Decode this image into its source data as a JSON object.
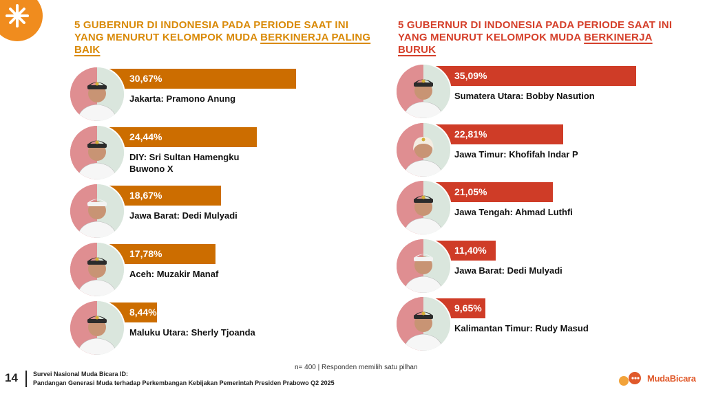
{
  "colors": {
    "best_accent": "#d98a08",
    "best_bar": "#cc6d00",
    "worst_accent": "#d5402b",
    "worst_bar": "#cf3c27",
    "logo": "#f08c1e"
  },
  "titles": {
    "best_part1": "5 GUBERNUR DI INDONESIA PADA PERIODE SAAT INI YANG MENURUT KELOMPOK MUDA ",
    "best_emph": "BERKINERJA PALING BAIK",
    "worst_part1": "5 GUBERNUR DI INDONESIA PADA PERIODE SAAT INI YANG MENURUT KELOMPOK MUDA ",
    "worst_emph": "BERKINERJA BURUK"
  },
  "chart_data": [
    {
      "type": "bar",
      "orientation": "horizontal",
      "title": "5 GUBERNUR DI INDONESIA PADA PERIODE SAAT INI YANG MENURUT KELOMPOK MUDA BERKINERJA PALING BAIK",
      "categories": [
        "Jakarta: Pramono Anung",
        "DIY: Sri Sultan Hamengku Buwono X",
        "Jawa Barat: Dedi Mulyadi",
        "Aceh: Muzakir Manaf",
        "Maluku Utara: Sherly Tjoanda"
      ],
      "values": [
        30.67,
        24.44,
        18.67,
        17.78,
        8.44
      ],
      "labels": [
        "30,67%",
        "24,44%",
        "18,67%",
        "17,78%",
        "8,44%"
      ],
      "xlim": [
        0,
        40
      ]
    },
    {
      "type": "bar",
      "orientation": "horizontal",
      "title": "5 GUBERNUR DI INDONESIA PADA PERIODE SAAT INI YANG MENURUT KELOMPOK MUDA BERKINERJA BURUK",
      "categories": [
        "Sumatera Utara: Bobby Nasution",
        "Jawa Timur: Khofifah Indar P",
        "Jawa Tengah: Ahmad Luthfi",
        "Jawa Barat: Dedi Mulyadi",
        "Kalimantan Timur: Rudy Masud"
      ],
      "values": [
        35.09,
        22.81,
        21.05,
        11.4,
        9.65
      ],
      "labels": [
        "35,09%",
        "22,81%",
        "21,05%",
        "11,40%",
        "9,65%"
      ],
      "xlim": [
        0,
        40
      ]
    }
  ],
  "note": "n= 400 |  Responden memilih satu pilhan",
  "footer": {
    "page": "14",
    "line1": "Survei Nasional Muda Bicara ID:",
    "line2": "Pandangan Generasi Muda terhadap Perkembangan Kebijakan Pemerintah Presiden Prabowo Q2 2025",
    "brand": "MudaBicara"
  }
}
